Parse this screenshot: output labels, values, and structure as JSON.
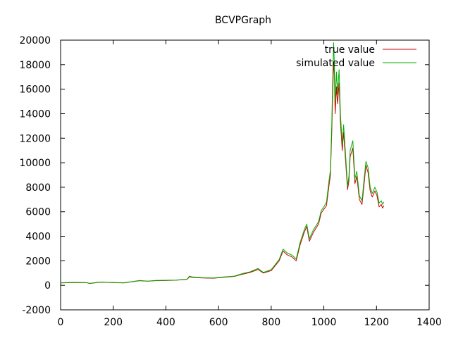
{
  "chart_data": {
    "type": "line",
    "title": "BCVPGraph",
    "xlabel": "",
    "ylabel": "",
    "xlim": [
      0,
      1400
    ],
    "ylim": [
      -2000,
      20000
    ],
    "x_ticks": [
      0,
      200,
      400,
      600,
      800,
      1000,
      1200,
      1400
    ],
    "y_ticks": [
      -2000,
      0,
      2000,
      4000,
      6000,
      8000,
      10000,
      12000,
      14000,
      16000,
      18000,
      20000
    ],
    "grid": false,
    "legend_position": "top-right",
    "series": [
      {
        "name": "true value",
        "color": "#cc0000",
        "points": [
          [
            0,
            200
          ],
          [
            50,
            230
          ],
          [
            100,
            210
          ],
          [
            110,
            150
          ],
          [
            150,
            260
          ],
          [
            200,
            220
          ],
          [
            240,
            200
          ],
          [
            270,
            280
          ],
          [
            300,
            380
          ],
          [
            330,
            330
          ],
          [
            360,
            380
          ],
          [
            400,
            390
          ],
          [
            440,
            420
          ],
          [
            480,
            480
          ],
          [
            490,
            700
          ],
          [
            500,
            650
          ],
          [
            540,
            600
          ],
          [
            580,
            580
          ],
          [
            620,
            660
          ],
          [
            660,
            730
          ],
          [
            690,
            900
          ],
          [
            720,
            1050
          ],
          [
            750,
            1300
          ],
          [
            770,
            1000
          ],
          [
            800,
            1200
          ],
          [
            830,
            2000
          ],
          [
            845,
            2800
          ],
          [
            860,
            2500
          ],
          [
            880,
            2300
          ],
          [
            895,
            2000
          ],
          [
            910,
            3300
          ],
          [
            925,
            4300
          ],
          [
            935,
            4800
          ],
          [
            945,
            3600
          ],
          [
            960,
            4300
          ],
          [
            980,
            5000
          ],
          [
            990,
            5900
          ],
          [
            1000,
            6200
          ],
          [
            1010,
            6500
          ],
          [
            1020,
            8200
          ],
          [
            1025,
            9000
          ],
          [
            1030,
            12500
          ],
          [
            1033,
            15000
          ],
          [
            1037,
            18200
          ],
          [
            1040,
            17200
          ],
          [
            1043,
            14000
          ],
          [
            1048,
            16200
          ],
          [
            1052,
            14800
          ],
          [
            1058,
            16500
          ],
          [
            1063,
            13300
          ],
          [
            1070,
            11000
          ],
          [
            1075,
            12500
          ],
          [
            1083,
            10000
          ],
          [
            1090,
            7800
          ],
          [
            1095,
            8500
          ],
          [
            1100,
            10500
          ],
          [
            1110,
            11200
          ],
          [
            1118,
            8300
          ],
          [
            1125,
            8900
          ],
          [
            1135,
            7000
          ],
          [
            1145,
            6600
          ],
          [
            1152,
            8100
          ],
          [
            1160,
            9800
          ],
          [
            1168,
            9200
          ],
          [
            1176,
            7700
          ],
          [
            1184,
            7200
          ],
          [
            1194,
            7700
          ],
          [
            1202,
            7300
          ],
          [
            1210,
            6400
          ],
          [
            1218,
            6600
          ],
          [
            1223,
            6300
          ],
          [
            1228,
            6500
          ]
        ]
      },
      {
        "name": "simulated value",
        "color": "#00b000",
        "points": [
          [
            0,
            210
          ],
          [
            50,
            240
          ],
          [
            100,
            220
          ],
          [
            110,
            160
          ],
          [
            150,
            270
          ],
          [
            200,
            230
          ],
          [
            240,
            210
          ],
          [
            270,
            300
          ],
          [
            300,
            400
          ],
          [
            330,
            340
          ],
          [
            360,
            400
          ],
          [
            400,
            410
          ],
          [
            440,
            430
          ],
          [
            480,
            500
          ],
          [
            490,
            750
          ],
          [
            500,
            680
          ],
          [
            540,
            620
          ],
          [
            580,
            600
          ],
          [
            620,
            680
          ],
          [
            660,
            750
          ],
          [
            690,
            950
          ],
          [
            720,
            1100
          ],
          [
            750,
            1380
          ],
          [
            770,
            1050
          ],
          [
            800,
            1280
          ],
          [
            830,
            2100
          ],
          [
            845,
            2950
          ],
          [
            860,
            2650
          ],
          [
            880,
            2450
          ],
          [
            895,
            2150
          ],
          [
            910,
            3500
          ],
          [
            925,
            4500
          ],
          [
            935,
            5000
          ],
          [
            945,
            3800
          ],
          [
            960,
            4500
          ],
          [
            980,
            5200
          ],
          [
            990,
            6100
          ],
          [
            1000,
            6400
          ],
          [
            1010,
            6800
          ],
          [
            1020,
            8600
          ],
          [
            1025,
            9400
          ],
          [
            1030,
            13200
          ],
          [
            1033,
            16200
          ],
          [
            1037,
            19800
          ],
          [
            1040,
            18000
          ],
          [
            1043,
            15000
          ],
          [
            1048,
            17400
          ],
          [
            1052,
            15600
          ],
          [
            1058,
            17600
          ],
          [
            1063,
            14000
          ],
          [
            1070,
            11500
          ],
          [
            1075,
            13100
          ],
          [
            1083,
            10500
          ],
          [
            1090,
            8100
          ],
          [
            1095,
            8900
          ],
          [
            1100,
            11000
          ],
          [
            1110,
            11800
          ],
          [
            1118,
            8700
          ],
          [
            1125,
            9300
          ],
          [
            1135,
            7300
          ],
          [
            1145,
            6900
          ],
          [
            1152,
            8500
          ],
          [
            1160,
            10100
          ],
          [
            1168,
            9600
          ],
          [
            1176,
            8000
          ],
          [
            1184,
            7500
          ],
          [
            1194,
            8000
          ],
          [
            1202,
            7600
          ],
          [
            1210,
            6700
          ],
          [
            1218,
            6900
          ],
          [
            1223,
            6600
          ],
          [
            1228,
            6800
          ]
        ]
      }
    ]
  }
}
